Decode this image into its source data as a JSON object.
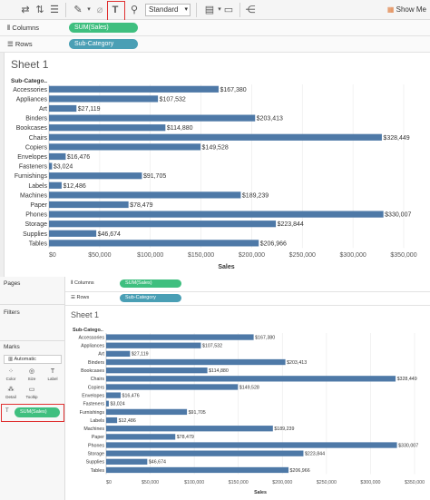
{
  "toolbar": {
    "standard_label": "Standard",
    "show_me_label": "Show Me"
  },
  "top": {
    "columns_label": "Columns",
    "rows_label": "Rows",
    "columns_pill": "SUM(Sales)",
    "rows_pill": "Sub-Category",
    "sheet_title": "Sheet 1",
    "axis_title": "Sales"
  },
  "bottom": {
    "pages_label": "Pages",
    "filters_label": "Filters",
    "marks_label": "Marks",
    "marks_type": "Automatic",
    "marks_buttons": [
      "Color",
      "Size",
      "Label",
      "Detail",
      "Tooltip"
    ],
    "marks_pill": "SUM(Sales)",
    "columns_label": "Columns",
    "rows_label": "Rows",
    "columns_pill": "SUM(Sales)",
    "rows_pill": "Sub-Category",
    "sheet_title": "Sheet 1",
    "axis_title": "Sales"
  },
  "colors": {
    "bar": "#4e79a7",
    "green_pill": "#3fbf7f",
    "blue_pill": "#4a9fb5",
    "highlight": "#e03030"
  },
  "chart_data": {
    "type": "bar",
    "orientation": "horizontal",
    "header": "Sub-Catego..",
    "categories": [
      "Accessories",
      "Appliances",
      "Art",
      "Binders",
      "Bookcases",
      "Chairs",
      "Copiers",
      "Envelopes",
      "Fasteners",
      "Furnishings",
      "Labels",
      "Machines",
      "Paper",
      "Phones",
      "Storage",
      "Supplies",
      "Tables"
    ],
    "values": [
      167380,
      107532,
      27119,
      203413,
      114880,
      328449,
      149528,
      16476,
      3024,
      91705,
      12486,
      189239,
      78479,
      330007,
      223844,
      46674,
      206966
    ],
    "labels": [
      "$167,380",
      "$107,532",
      "$27,119",
      "$203,413",
      "$114,880",
      "$328,449",
      "$149,528",
      "$16,476",
      "$3,024",
      "$91,705",
      "$12,486",
      "$189,239",
      "$78,479",
      "$330,007",
      "$223,844",
      "$46,674",
      "$206,966"
    ],
    "xticks": [
      0,
      50000,
      100000,
      150000,
      200000,
      250000,
      300000,
      350000
    ],
    "xtick_labels": [
      "$0",
      "$50,000",
      "$100,000",
      "$150,000",
      "$200,000",
      "$250,000",
      "$300,000",
      "$350,000"
    ],
    "xlabel": "Sales",
    "xlim": [
      0,
      350000
    ],
    "grid": true
  }
}
